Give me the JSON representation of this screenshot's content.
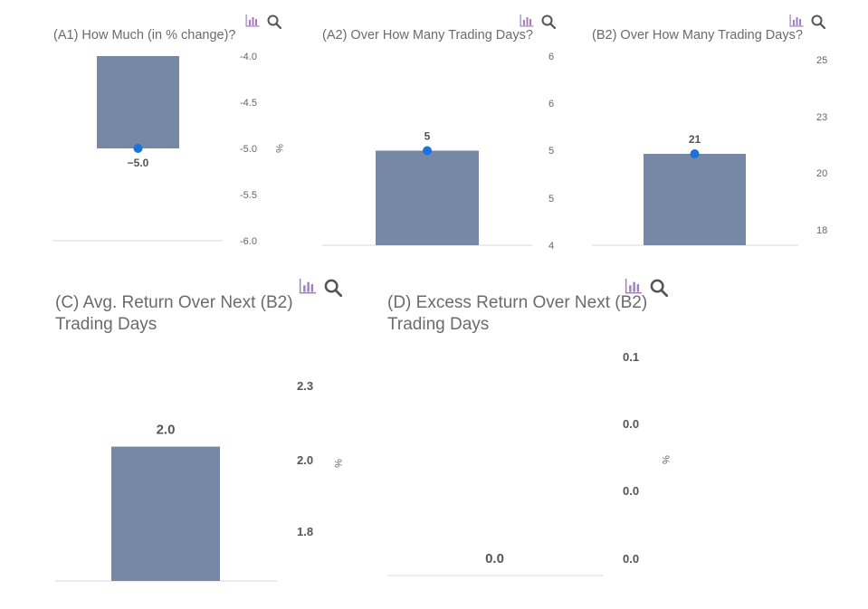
{
  "colors": {
    "bar": "#7788a6",
    "dot": "#1a73d6",
    "baseline": "#d9d9d9",
    "icon": "#a27bc4"
  },
  "icons": [
    "bar-chart-icon",
    "search-icon"
  ],
  "chart_data": [
    {
      "id": "A1",
      "type": "bar",
      "title": "(A1) How Much (in % change)?",
      "categories": [
        ""
      ],
      "values": [
        -5.0
      ],
      "value_labels": [
        "−5.0"
      ],
      "marker": true,
      "ylim": [
        -6.0,
        -4.0
      ],
      "yticks": [
        "-4.0",
        "-4.5",
        "-5.0",
        "-5.5",
        "-6.0"
      ],
      "yunit": "%",
      "bar_from": "top"
    },
    {
      "id": "A2",
      "type": "bar",
      "title": "(A2) Over How Many Trading Days?",
      "categories": [
        ""
      ],
      "values": [
        5
      ],
      "value_labels": [
        "5"
      ],
      "marker": true,
      "ylim": [
        4,
        6
      ],
      "yticks": [
        "6",
        "6",
        "5",
        "5",
        "4"
      ],
      "yunit": "",
      "bar_from": "bottom"
    },
    {
      "id": "B2",
      "type": "bar",
      "title": "(B2) Over How Many Trading Days?",
      "categories": [
        ""
      ],
      "values": [
        21
      ],
      "value_labels": [
        "21"
      ],
      "marker": true,
      "ylim": [
        17,
        25
      ],
      "yticks": [
        "25",
        "23",
        "20",
        "18"
      ],
      "yunit": "",
      "bar_from": "bottom"
    },
    {
      "id": "C",
      "type": "bar",
      "title": "(C) Avg. Return Over Next (B2)",
      "title_line2": "Trading Days",
      "categories": [
        ""
      ],
      "values": [
        2.0
      ],
      "value_labels": [
        "2.0"
      ],
      "marker": false,
      "ylim": [
        1.6,
        2.5
      ],
      "yticks": [
        "2.3",
        "2.0",
        "1.8"
      ],
      "yunit": "%",
      "bar_from": "bottom"
    },
    {
      "id": "D",
      "type": "bar",
      "title": "(D) Excess Return Over Next (B2)",
      "title_line2": "Trading Days",
      "categories": [
        ""
      ],
      "values": [
        0.0
      ],
      "value_labels": [
        "0.0"
      ],
      "marker": false,
      "ylim": [
        0.0,
        0.1
      ],
      "yticks": [
        "0.1",
        "0.0",
        "0.0",
        "0.0"
      ],
      "yunit": "%",
      "bar_from": "bottom"
    }
  ]
}
